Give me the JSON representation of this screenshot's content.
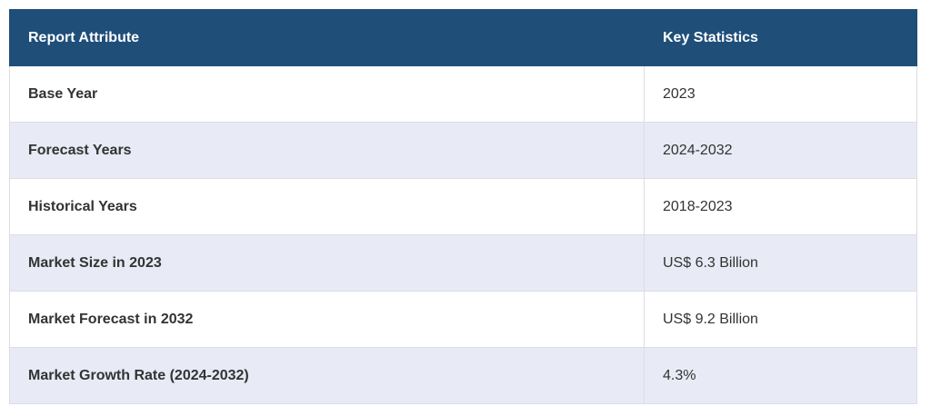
{
  "table": {
    "header": [
      "Report Attribute",
      "Key Statistics"
    ],
    "rows": [
      [
        "Base Year",
        "2023"
      ],
      [
        "Forecast Years",
        "2024-2032"
      ],
      [
        "Historical Years",
        "2018-2023"
      ],
      [
        "Market Size in 2023",
        "US$ 6.3 Billion"
      ],
      [
        "Market Forecast in 2032",
        "US$ 9.2 Billion"
      ],
      [
        "Market Growth Rate (2024-2032)",
        "4.3%"
      ]
    ]
  }
}
